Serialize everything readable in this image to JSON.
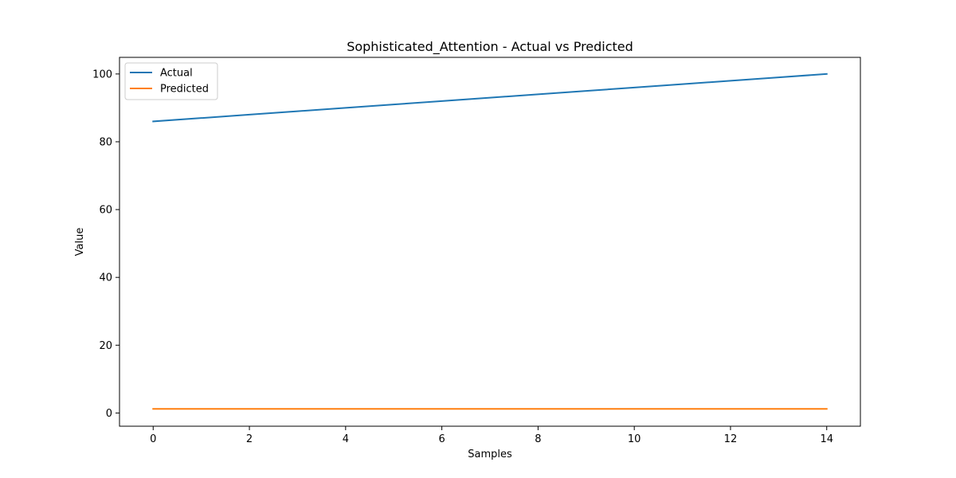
{
  "chart_data": {
    "type": "line",
    "title": "Sophisticated_Attention - Actual vs Predicted",
    "xlabel": "Samples",
    "ylabel": "Value",
    "x": [
      0,
      1,
      2,
      3,
      4,
      5,
      6,
      7,
      8,
      9,
      10,
      11,
      12,
      13,
      14
    ],
    "series": [
      {
        "name": "Actual",
        "color": "#1f77b4",
        "values": [
          86,
          87,
          88,
          89,
          90,
          91,
          92,
          93,
          94,
          95,
          96,
          97,
          98,
          99,
          100
        ]
      },
      {
        "name": "Predicted",
        "color": "#ff7f0e",
        "values": [
          1.2,
          1.2,
          1.2,
          1.2,
          1.2,
          1.2,
          1.2,
          1.2,
          1.2,
          1.2,
          1.2,
          1.2,
          1.2,
          1.2,
          1.2
        ]
      }
    ],
    "xlim": [
      -0.7,
      14.7
    ],
    "ylim": [
      -3.9,
      104.9
    ],
    "xticks": [
      "0",
      "2",
      "4",
      "6",
      "8",
      "10",
      "12",
      "14"
    ],
    "yticks": [
      "0",
      "20",
      "40",
      "60",
      "80",
      "100"
    ],
    "grid": false,
    "legend_position": "top-left"
  }
}
